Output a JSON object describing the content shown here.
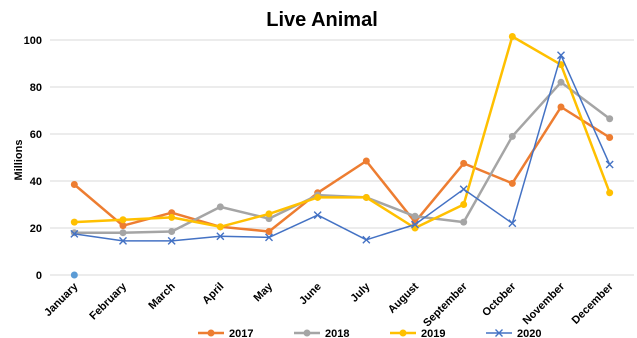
{
  "chart_data": {
    "type": "line",
    "title": "Live Animal",
    "ylabel": "Millions",
    "xlabel": "",
    "ylim": [
      0,
      100
    ],
    "yticks": [
      0,
      20,
      40,
      60,
      80,
      100
    ],
    "categories": [
      "January",
      "February",
      "March",
      "April",
      "May",
      "June",
      "July",
      "August",
      "September",
      "October",
      "November",
      "December"
    ],
    "grid": true,
    "legend_position": "bottom",
    "series": [
      {
        "name": "2017",
        "color": "#ED7D31",
        "marker": "circle",
        "values": [
          38.5,
          21.0,
          26.5,
          20.5,
          18.5,
          35.0,
          48.5,
          22.5,
          47.5,
          39.0,
          71.5,
          58.5
        ]
      },
      {
        "name": "2018",
        "color": "#A5A5A5",
        "marker": "circle",
        "values": [
          18.0,
          18.0,
          18.5,
          29.0,
          24.0,
          34.0,
          33.0,
          25.0,
          22.5,
          59.0,
          82.0,
          66.5
        ]
      },
      {
        "name": "2019",
        "color": "#FFC000",
        "marker": "circle",
        "values": [
          22.5,
          23.5,
          24.5,
          20.5,
          26.0,
          33.0,
          33.0,
          20.0,
          30.0,
          101.5,
          89.5,
          35.0
        ]
      },
      {
        "name": "2020",
        "color": "#4472C4",
        "marker": "x",
        "values": [
          17.5,
          14.5,
          14.5,
          16.5,
          16.0,
          25.5,
          15.0,
          21.5,
          36.5,
          22.0,
          93.5,
          47.0
        ]
      }
    ],
    "extra_points": [
      {
        "x": "January",
        "y": 0,
        "color": "#5B9BD5"
      }
    ]
  }
}
